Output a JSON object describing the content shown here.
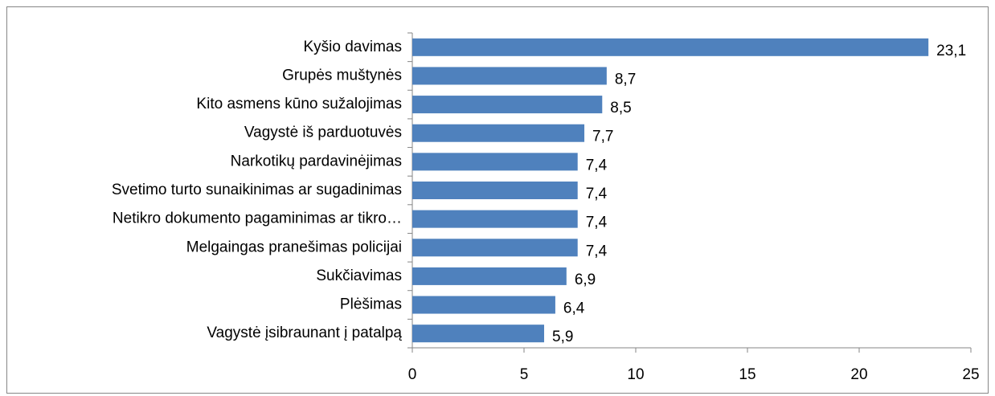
{
  "chart_data": {
    "type": "barh",
    "categories": [
      "Kyšio davimas",
      "Grupės muštynės",
      "Kito asmens kūno sužalojimas",
      "Vagystė iš parduotuvės",
      "Narkotikų pardavinėjimas",
      "Svetimo turto sunaikinimas ar sugadinimas",
      "Netikro dokumento pagaminimas ar tikro…",
      "Melgaingas pranešimas policijai",
      "Sukčiavimas",
      "Plėšimas",
      "Vagystė įsibraunant į patalpą"
    ],
    "values": [
      23.1,
      8.7,
      8.5,
      7.7,
      7.4,
      7.4,
      7.4,
      7.4,
      6.9,
      6.4,
      5.9
    ],
    "value_labels": [
      "23,1",
      "8,7",
      "8,5",
      "7,7",
      "7,4",
      "7,4",
      "7,4",
      "7,4",
      "6,9",
      "6,4",
      "5,9"
    ],
    "color": "#4f81bd",
    "xlim": [
      0,
      25
    ],
    "xticks": [
      0,
      5,
      10,
      15,
      20,
      25
    ],
    "grid": false
  }
}
